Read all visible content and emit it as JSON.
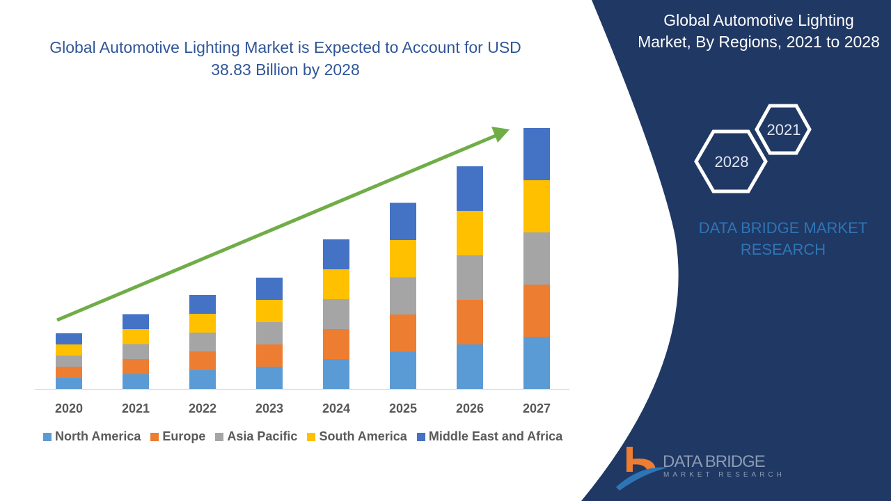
{
  "header": {
    "title": "Global Automotive Lighting Market is Expected to Account for USD 38.83 Billion by 2028"
  },
  "side_panel": {
    "title": "Global Automotive Lighting Market, By Regions, 2021 to 2028",
    "hex_badges": [
      "2021",
      "2028"
    ],
    "brand": "DATA BRIDGE MARKET RESEARCH",
    "logo_text": "DATA BRIDGE",
    "logo_subtext": "MARKET RESEARCH",
    "panel_color": "#203864"
  },
  "chart_data": {
    "type": "bar",
    "stacked": true,
    "title": "Global Automotive Lighting Market is Expected to Account for USD 38.83 Billion by 2028",
    "categories": [
      "2020",
      "2021",
      "2022",
      "2023",
      "2024",
      "2025",
      "2026",
      "2027"
    ],
    "series": [
      {
        "name": "North America",
        "color": "#5b9bd5",
        "values": [
          3.2,
          4.3,
          5.4,
          6.4,
          8.6,
          10.7,
          12.8,
          15
        ]
      },
      {
        "name": "Europe",
        "color": "#ed7d31",
        "values": [
          3.2,
          4.3,
          5.4,
          6.4,
          8.6,
          10.7,
          12.8,
          15
        ]
      },
      {
        "name": "Asia Pacific",
        "color": "#a5a5a5",
        "values": [
          3.2,
          4.3,
          5.4,
          6.4,
          8.6,
          10.7,
          12.8,
          15
        ]
      },
      {
        "name": "South America",
        "color": "#ffc000",
        "values": [
          3.2,
          4.3,
          5.4,
          6.4,
          8.6,
          10.7,
          12.8,
          15
        ]
      },
      {
        "name": "Middle East and Africa",
        "color": "#4472c4",
        "values": [
          3.2,
          4.3,
          5.4,
          6.4,
          8.6,
          10.7,
          12.8,
          15
        ]
      }
    ],
    "value_axis_shown": false,
    "grid": false,
    "legend_placement": "bottom",
    "trend_arrow_color": "#70ad47"
  }
}
